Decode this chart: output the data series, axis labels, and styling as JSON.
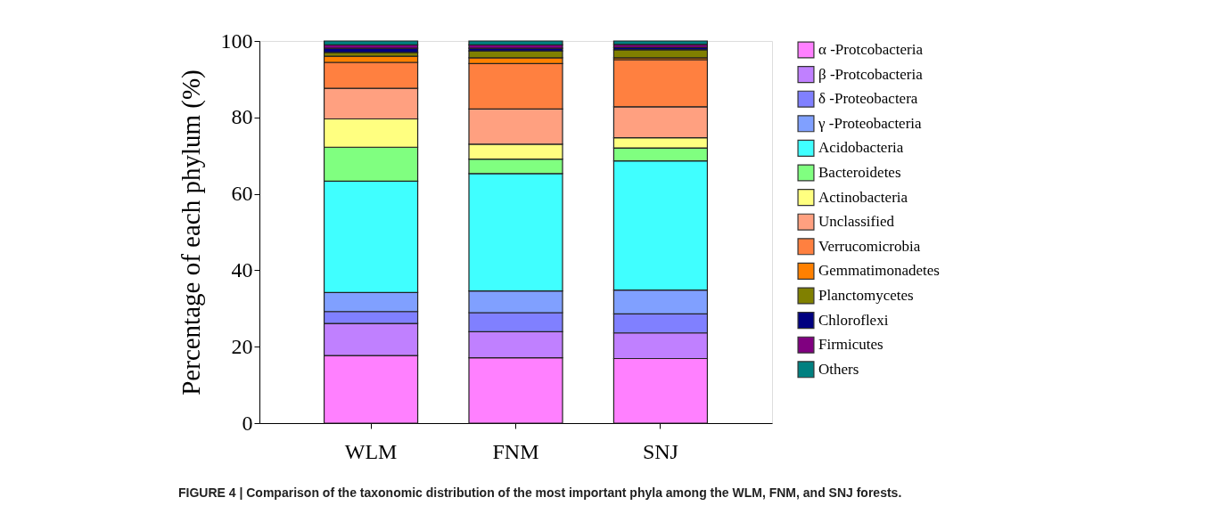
{
  "chart_data": {
    "type": "bar",
    "stacked": true,
    "ylabel": "Percentage of each phylum (%)",
    "categories": [
      "WLM",
      "FNM",
      "SNJ"
    ],
    "ylim": [
      0,
      100
    ],
    "yticks": [
      0,
      20,
      40,
      60,
      80,
      100
    ],
    "grid": false,
    "legend": "right",
    "series": [
      {
        "name": "α -Protcobacteria",
        "color": "#ff80ff",
        "values": [
          17.7,
          17.1,
          16.9
        ]
      },
      {
        "name": "β -Protcobacteria",
        "color": "#c080ff",
        "values": [
          8.4,
          6.8,
          6.7
        ]
      },
      {
        "name": "δ -Proteobactera",
        "color": "#8080ff",
        "values": [
          3.1,
          5.0,
          5.0
        ]
      },
      {
        "name": "γ -Proteobacteria",
        "color": "#80a0ff",
        "values": [
          5.0,
          5.7,
          6.2
        ]
      },
      {
        "name": "Acidobacteria",
        "color": "#40ffff",
        "values": [
          29.1,
          30.7,
          33.8
        ]
      },
      {
        "name": "Bacteroidetes",
        "color": "#80ff80",
        "values": [
          8.9,
          3.8,
          3.4
        ]
      },
      {
        "name": "Actinobacteria",
        "color": "#ffff80",
        "values": [
          7.4,
          3.9,
          2.7
        ]
      },
      {
        "name": "Unclassified",
        "color": "#ffa080",
        "values": [
          8.0,
          9.2,
          8.1
        ]
      },
      {
        "name": "Verrucomicrobia",
        "color": "#ff8040",
        "values": [
          6.8,
          11.9,
          12.3
        ]
      },
      {
        "name": "Gemmatimonadetes",
        "color": "#ff8000",
        "values": [
          1.6,
          1.5,
          0.5
        ]
      },
      {
        "name": "Planctomycetes",
        "color": "#808000",
        "values": [
          1.0,
          1.8,
          2.1
        ]
      },
      {
        "name": "Chloroflexi",
        "color": "#000080",
        "values": [
          1.1,
          0.7,
          0.6
        ]
      },
      {
        "name": "Firmicutes",
        "color": "#800080",
        "values": [
          0.9,
          0.9,
          0.8
        ]
      },
      {
        "name": "Others",
        "color": "#008080",
        "values": [
          1.0,
          1.0,
          0.9
        ]
      }
    ],
    "annotations": [
      "FIGURE 4 | Comparison of the taxonomic distribution of the most important phyla among the WLM, FNM, and SNJ forests."
    ]
  }
}
